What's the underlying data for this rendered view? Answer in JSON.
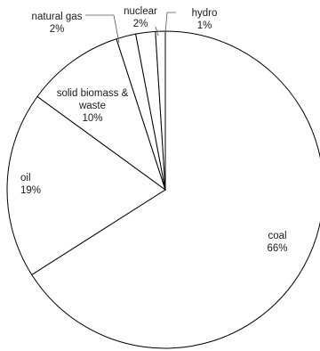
{
  "chart_data": {
    "type": "pie",
    "slices": [
      {
        "name": "coal",
        "value": 66,
        "label": "66%"
      },
      {
        "name": "oil",
        "value": 19,
        "label": "19%"
      },
      {
        "name": "solid biomass & waste",
        "value": 10,
        "label": "10%"
      },
      {
        "name": "natural gas",
        "value": 2,
        "label": "2%"
      },
      {
        "name": "nuclear",
        "value": 2,
        "label": "2%"
      },
      {
        "name": "hydro",
        "value": 1,
        "label": "1%"
      }
    ],
    "start": "12 o'clock",
    "direction": "clockwise",
    "fill_color": "#ffffff",
    "edge_color": "#000000"
  }
}
